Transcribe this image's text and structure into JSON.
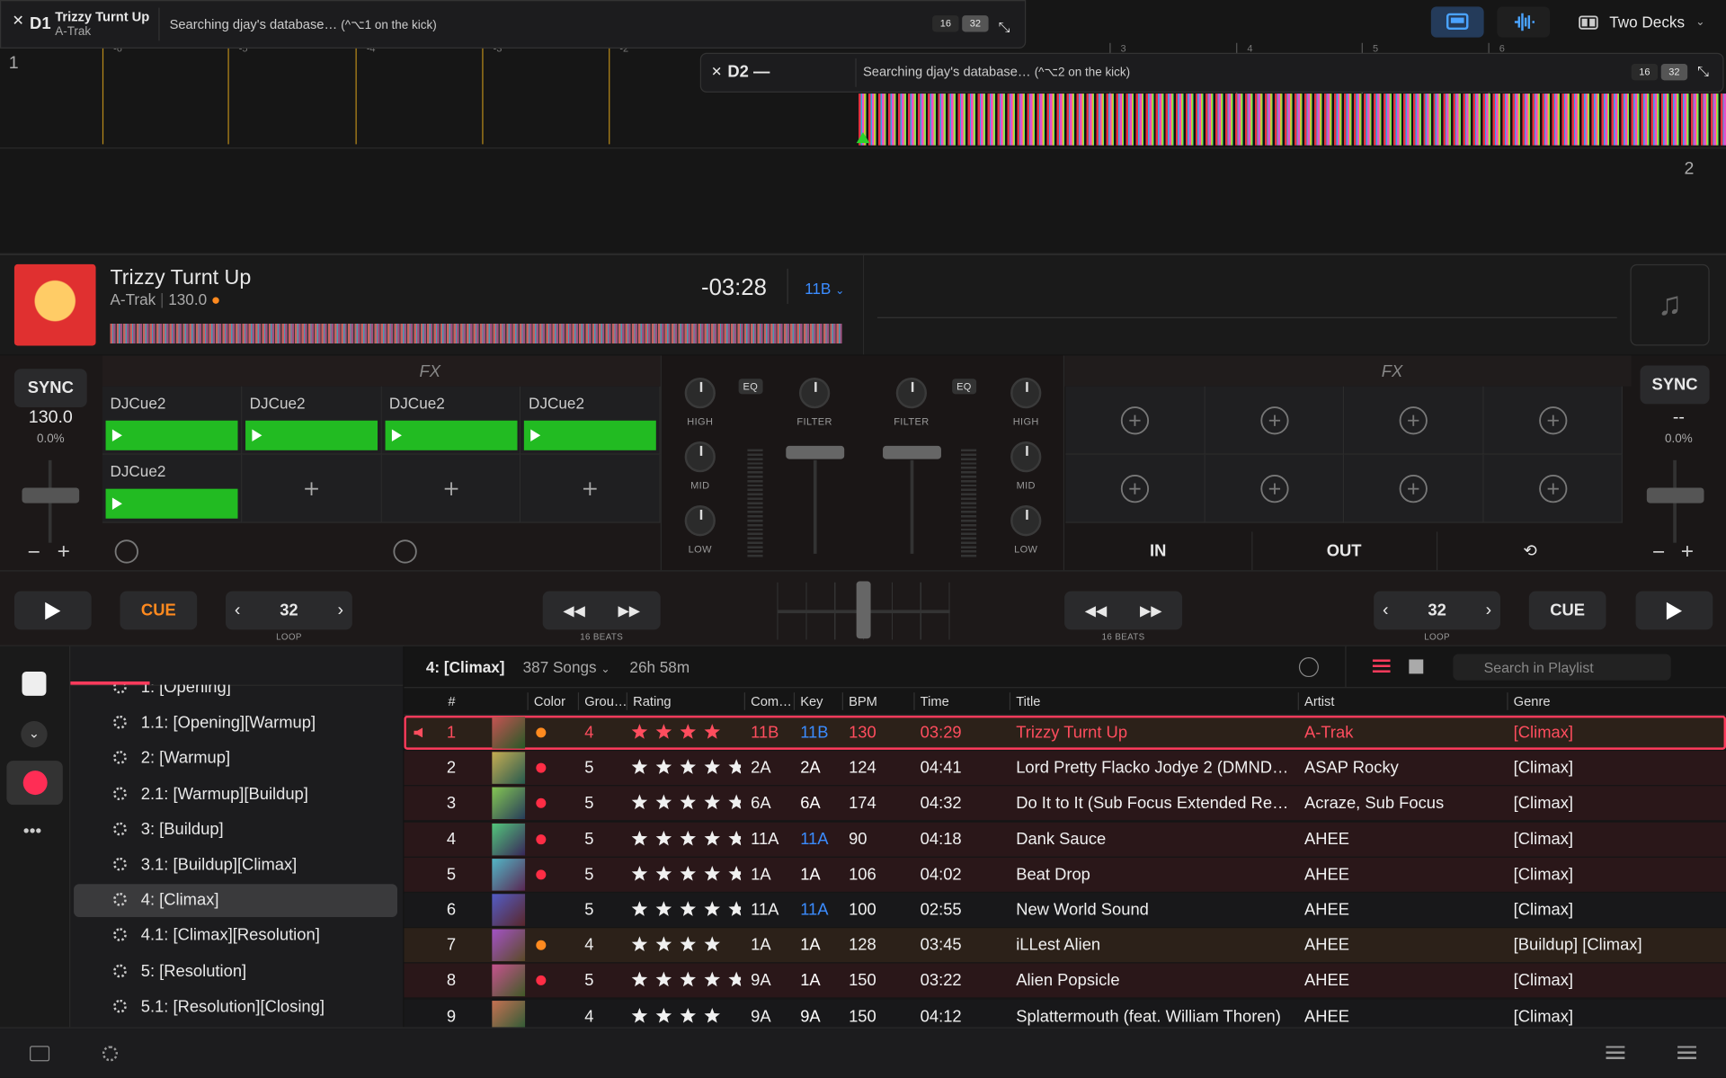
{
  "deck1_header": {
    "id": "D1",
    "title": "Trizzy Turnt Up",
    "artist": "A-Trak",
    "status": "Searching djay's database…",
    "shortcut": "(^⌥1 on the kick)",
    "beat_options": [
      "16",
      "32"
    ]
  },
  "deck2_header": {
    "id": "D2",
    "title": "—",
    "status": "Searching djay's database…",
    "shortcut": "(^⌥2 on the kick)",
    "beat_options": [
      "16",
      "32"
    ]
  },
  "toolbar": {
    "layout": "Two Decks"
  },
  "waveform": {
    "deck1_number": "1",
    "deck2_number": "2",
    "beat_markers": [
      "-6",
      "-5",
      "-4",
      "-3",
      "-2",
      "3",
      "4",
      "5",
      "6"
    ]
  },
  "deck1": {
    "title": "Trizzy Turnt Up",
    "artist": "A-Trak",
    "bpm": "130.0",
    "time": "-03:28",
    "key": "11B",
    "sync": "SYNC",
    "tempo": "130.0",
    "pitch": "0.0%",
    "fx": "FX",
    "pads": [
      "DJCue2",
      "DJCue2",
      "DJCue2",
      "DJCue2",
      "DJCue2"
    ],
    "cue": "CUE",
    "loop_size": "32",
    "loop_label": "LOOP",
    "beat_jump": "16 BEATS"
  },
  "mixer": {
    "eq_left": "EQ",
    "eq_right": "EQ",
    "left": {
      "high": "HIGH",
      "mid": "MID",
      "low": "LOW",
      "filter": "FILTER"
    },
    "right": {
      "high": "HIGH",
      "mid": "MID",
      "low": "LOW",
      "filter": "FILTER"
    }
  },
  "deck2": {
    "sync": "SYNC",
    "tempo": "--",
    "pitch": "0.0%",
    "fx": "FX",
    "loop_in": "IN",
    "loop_out": "OUT",
    "cue": "CUE",
    "loop_size": "32",
    "loop_label": "LOOP",
    "beat_jump": "16 BEATS"
  },
  "library": {
    "sidebar": [
      {
        "label": "1: [Opening]"
      },
      {
        "label": "1.1: [Opening][Warmup]"
      },
      {
        "label": "2: [Warmup]"
      },
      {
        "label": "2.1: [Warmup][Buildup]"
      },
      {
        "label": "3: [Buildup]"
      },
      {
        "label": "3.1: [Buildup][Climax]"
      },
      {
        "label": "4: [Climax]",
        "selected": true
      },
      {
        "label": "4.1: [Climax][Resolution]"
      },
      {
        "label": "5: [Resolution]"
      },
      {
        "label": "5.1: [Resolution][Closing]"
      }
    ],
    "playlist": {
      "name": "4: [Climax]",
      "count": "387 Songs",
      "duration": "26h 58m",
      "search_placeholder": "Search in Playlist"
    },
    "columns": [
      "#",
      "Color",
      "Grou…",
      "Rating",
      "Com…",
      "Key",
      "BPM",
      "Time",
      "Title",
      "Artist",
      "Genre"
    ],
    "rows": [
      {
        "number": "1",
        "color": "#ff8a1f",
        "group": "4",
        "rating": 4,
        "comment": "11B",
        "key": "11B",
        "key_color": "#3b8cff",
        "bpm": "130",
        "time": "03:29",
        "title": "Trizzy Turnt Up",
        "artist": "A-Trak",
        "genre": "[Climax]",
        "playing": true
      },
      {
        "number": "2",
        "color": "#ff2d45",
        "group": "5",
        "rating": 5,
        "comment": "2A",
        "key": "2A",
        "key_color": "#ffffff",
        "bpm": "124",
        "time": "04:41",
        "title": "Lord Pretty Flacko Jodye 2 (DMND…",
        "artist": "ASAP Rocky",
        "genre": "[Climax]"
      },
      {
        "number": "3",
        "color": "#ff2d45",
        "group": "5",
        "rating": 5,
        "comment": "6A",
        "key": "6A",
        "key_color": "#ffffff",
        "bpm": "174",
        "time": "04:32",
        "title": "Do It to It (Sub Focus Extended Re…",
        "artist": "Acraze, Sub Focus",
        "genre": "[Climax]"
      },
      {
        "number": "4",
        "color": "#ff2d45",
        "group": "5",
        "rating": 5,
        "comment": "11A",
        "key": "11A",
        "key_color": "#3b8cff",
        "bpm": "90",
        "time": "04:18",
        "title": "Dank Sauce",
        "artist": "AHEE",
        "genre": "[Climax]"
      },
      {
        "number": "5",
        "color": "#ff2d45",
        "group": "5",
        "rating": 5,
        "comment": "1A",
        "key": "1A",
        "key_color": "#ffffff",
        "bpm": "106",
        "time": "04:02",
        "title": "Beat Drop",
        "artist": "AHEE",
        "genre": "[Climax]"
      },
      {
        "number": "6",
        "color": null,
        "group": "5",
        "rating": 5,
        "comment": "11A",
        "key": "11A",
        "key_color": "#3b8cff",
        "bpm": "100",
        "time": "02:55",
        "title": "New World Sound",
        "artist": "AHEE",
        "genre": "[Climax]"
      },
      {
        "number": "7",
        "color": "#ff8a1f",
        "group": "4",
        "rating": 4,
        "comment": "1A",
        "key": "1A",
        "key_color": "#ffffff",
        "bpm": "128",
        "time": "03:45",
        "title": "iLLest Alien",
        "artist": "AHEE",
        "genre": "[Buildup] [Climax]"
      },
      {
        "number": "8",
        "color": "#ff2d45",
        "group": "5",
        "rating": 5,
        "comment": "9A",
        "key": "1A",
        "key_color": "#ffffff",
        "bpm": "150",
        "time": "03:22",
        "title": "Alien Popsicle",
        "artist": "AHEE",
        "genre": "[Climax]"
      },
      {
        "number": "9",
        "color": null,
        "group": "4",
        "rating": 4,
        "comment": "9A",
        "key": "9A",
        "key_color": "#ffffff",
        "bpm": "150",
        "time": "04:12",
        "title": "Splattermouth (feat. William Thoren)",
        "artist": "AHEE",
        "genre": "[Climax]"
      }
    ]
  }
}
